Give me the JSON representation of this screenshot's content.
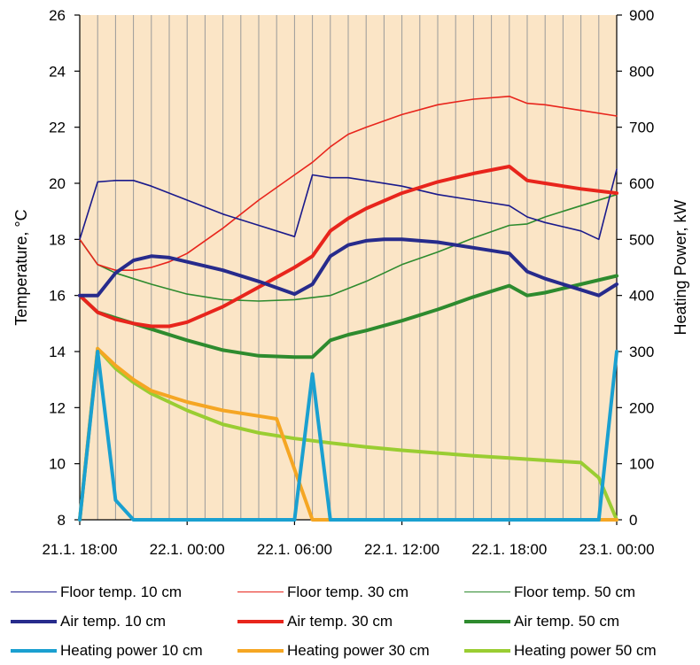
{
  "chart_data": {
    "type": "line",
    "title": "",
    "xlabel": "",
    "ylabel": "Temperature, °C",
    "y2label": "Heating Power, kW",
    "xlim": [
      0,
      30
    ],
    "ylim": [
      8,
      26
    ],
    "y2lim": [
      0,
      900
    ],
    "x_unit": "hours from 21.1. 18:00",
    "x_ticks": [
      {
        "x": 0,
        "label": "21.1. 18:00"
      },
      {
        "x": 6,
        "label": "22.1. 00:00"
      },
      {
        "x": 12,
        "label": "22.1. 06:00"
      },
      {
        "x": 18,
        "label": "22.1. 12:00"
      },
      {
        "x": 24,
        "label": "22.1. 18:00"
      },
      {
        "x": 30,
        "label": "23.1. 00:00"
      }
    ],
    "y_ticks": [
      8,
      10,
      12,
      14,
      16,
      18,
      20,
      22,
      24,
      26
    ],
    "y2_ticks": [
      0,
      100,
      200,
      300,
      400,
      500,
      600,
      700,
      800,
      900
    ],
    "grid": "vertical lines every hour",
    "plot_background": "#fbe5c6",
    "series": [
      {
        "name": "Floor temp. 10 cm",
        "axis": "left",
        "color": "#1a1a8c",
        "width": 1.6,
        "x": [
          0,
          1,
          2,
          3,
          4,
          6,
          8,
          10,
          12,
          13,
          14,
          15,
          16,
          18,
          20,
          22,
          24,
          25,
          26,
          28,
          29,
          30
        ],
        "y": [
          18.0,
          20.05,
          20.1,
          20.1,
          19.9,
          19.4,
          18.9,
          18.5,
          18.1,
          20.3,
          20.2,
          20.2,
          20.1,
          19.9,
          19.6,
          19.4,
          19.2,
          18.8,
          18.6,
          18.3,
          18.0,
          20.5
        ]
      },
      {
        "name": "Floor temp. 30 cm",
        "axis": "left",
        "color": "#e8251c",
        "width": 1.6,
        "x": [
          0,
          1,
          2,
          3,
          4,
          5,
          6,
          8,
          10,
          12,
          13,
          14,
          15,
          16,
          18,
          20,
          22,
          24,
          25,
          26,
          28,
          30
        ],
        "y": [
          18.0,
          17.1,
          16.9,
          16.9,
          17.0,
          17.2,
          17.5,
          18.4,
          19.4,
          20.3,
          20.75,
          21.3,
          21.75,
          22.0,
          22.45,
          22.8,
          23.0,
          23.1,
          22.85,
          22.8,
          22.6,
          22.4
        ]
      },
      {
        "name": "Floor temp. 50 cm",
        "axis": "left",
        "color": "#2e8b2e",
        "width": 1.6,
        "x": [
          0,
          1,
          2,
          3,
          4,
          6,
          8,
          10,
          12,
          14,
          15,
          16,
          18,
          20,
          22,
          24,
          25,
          26,
          28,
          30
        ],
        "y": [
          18.0,
          17.1,
          16.8,
          16.6,
          16.4,
          16.05,
          15.85,
          15.8,
          15.85,
          16.0,
          16.25,
          16.5,
          17.1,
          17.55,
          18.05,
          18.5,
          18.55,
          18.8,
          19.2,
          19.6
        ]
      },
      {
        "name": "Air temp. 10 cm",
        "axis": "left",
        "color": "#272b8c",
        "width": 4,
        "x": [
          0,
          1,
          2,
          3,
          4,
          5,
          6,
          8,
          10,
          12,
          13,
          14,
          15,
          16,
          17,
          18,
          20,
          22,
          24,
          25,
          26,
          28,
          29,
          30
        ],
        "y": [
          16.0,
          16.0,
          16.8,
          17.25,
          17.4,
          17.35,
          17.2,
          16.9,
          16.5,
          16.05,
          16.4,
          17.4,
          17.8,
          17.95,
          18.0,
          18.0,
          17.9,
          17.7,
          17.5,
          16.85,
          16.6,
          16.2,
          16.0,
          16.4
        ]
      },
      {
        "name": "Air temp. 30 cm",
        "axis": "left",
        "color": "#e8251c",
        "width": 4,
        "x": [
          0,
          1,
          2,
          3,
          4,
          5,
          6,
          8,
          10,
          12,
          13,
          14,
          15,
          16,
          18,
          20,
          22,
          24,
          25,
          26,
          28,
          30
        ],
        "y": [
          16.0,
          15.4,
          15.15,
          15.0,
          14.9,
          14.9,
          15.05,
          15.6,
          16.3,
          17.0,
          17.4,
          18.3,
          18.75,
          19.1,
          19.65,
          20.05,
          20.35,
          20.6,
          20.1,
          20.0,
          19.8,
          19.65
        ]
      },
      {
        "name": "Air temp. 50 cm",
        "axis": "left",
        "color": "#2e8b2e",
        "width": 4,
        "x": [
          0,
          1,
          2,
          3,
          4,
          6,
          8,
          10,
          12,
          13,
          14,
          15,
          16,
          18,
          20,
          22,
          24,
          25,
          26,
          28,
          30
        ],
        "y": [
          16.0,
          15.4,
          15.2,
          15.0,
          14.8,
          14.4,
          14.05,
          13.85,
          13.8,
          13.8,
          14.4,
          14.6,
          14.75,
          15.1,
          15.5,
          15.95,
          16.35,
          16.0,
          16.1,
          16.4,
          16.7
        ]
      },
      {
        "name": "Heating power 10 cm",
        "axis": "right",
        "color": "#1aa0d0",
        "width": 4,
        "x": [
          0,
          1,
          2,
          3,
          10,
          12,
          13,
          14,
          29,
          30
        ],
        "y": [
          0,
          300,
          35,
          0,
          0,
          0,
          260,
          0,
          0,
          300
        ]
      },
      {
        "name": "Heating power 30 cm",
        "axis": "right",
        "color": "#f5a623",
        "width": 4,
        "x": [
          0,
          1,
          2,
          3,
          4,
          6,
          8,
          10,
          11,
          12,
          13,
          30
        ],
        "y": [
          0,
          305,
          275,
          250,
          230,
          210,
          195,
          185,
          180,
          90,
          0,
          0
        ]
      },
      {
        "name": "Heating power 50 cm",
        "axis": "right",
        "color": "#9acd32",
        "width": 4,
        "x": [
          0,
          1,
          2,
          3,
          4,
          6,
          8,
          10,
          12,
          14,
          16,
          18,
          20,
          22,
          24,
          26,
          28,
          29,
          30
        ],
        "y": [
          0,
          305,
          270,
          245,
          225,
          195,
          170,
          155,
          145,
          137,
          130,
          124,
          119,
          114,
          110,
          106,
          102,
          75,
          0
        ]
      }
    ]
  }
}
